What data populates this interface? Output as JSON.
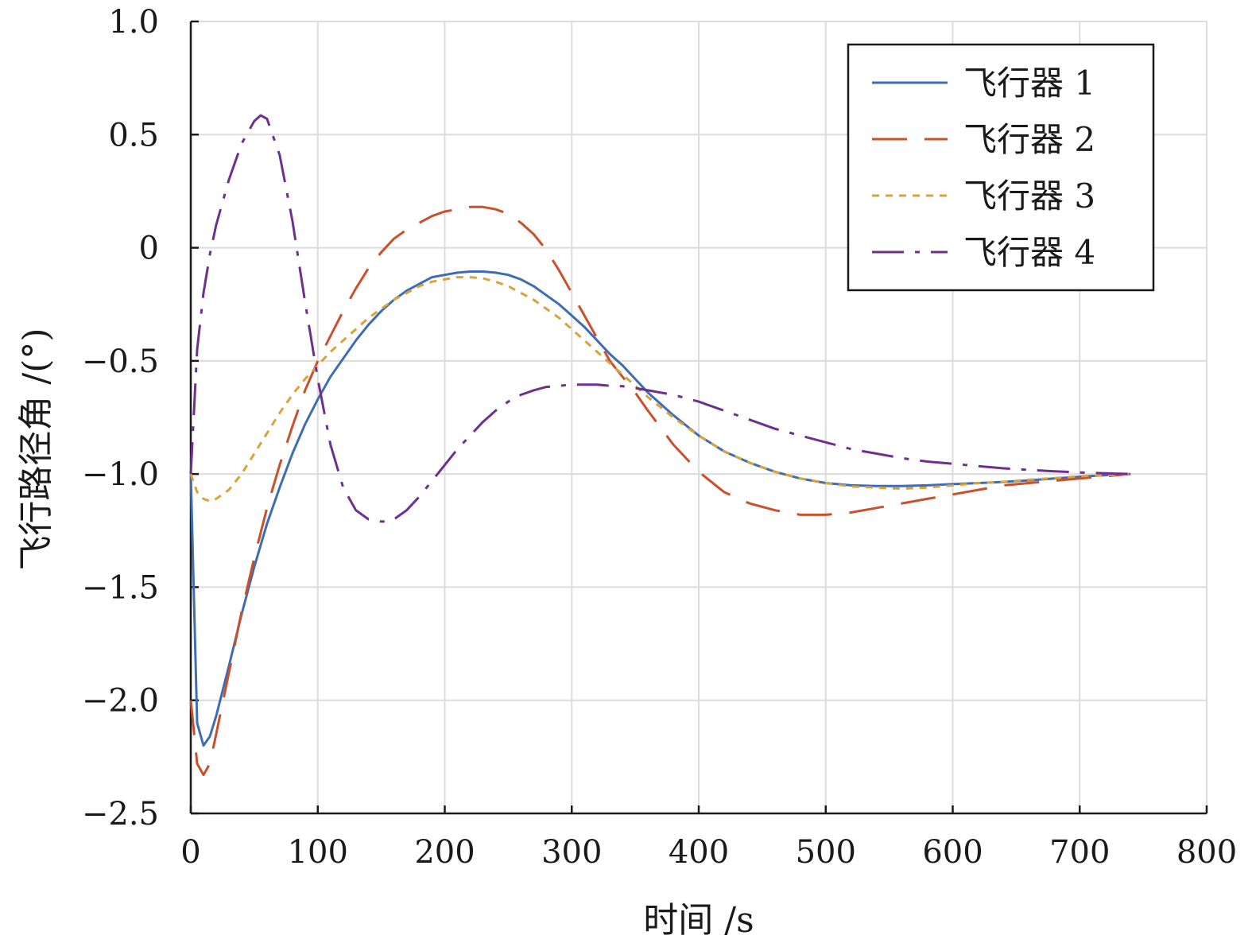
{
  "chart_data": {
    "type": "line",
    "title": "",
    "xlabel": "时间 /s",
    "ylabel": "飞行路径角 /(°)",
    "xlim": [
      0,
      800
    ],
    "ylim": [
      -2.5,
      1.0
    ],
    "xticks": [
      0,
      100,
      200,
      300,
      400,
      500,
      600,
      700,
      800
    ],
    "xtick_labels": [
      "0",
      "100",
      "200",
      "300",
      "400",
      "500",
      "600",
      "700",
      "800"
    ],
    "yticks": [
      1.0,
      0.5,
      0,
      -0.5,
      -1.0,
      -1.5,
      -2.0,
      -2.5
    ],
    "ytick_labels": [
      "1.0",
      "0.5",
      "0",
      "−0.5",
      "−1.0",
      "−1.5",
      "−2.0",
      "−2.5"
    ],
    "grid": true,
    "legend_position": "top-right",
    "series": [
      {
        "name": "飞行器 1",
        "color": "#3e6db5",
        "dash": "solid",
        "x": [
          0,
          5,
          10,
          15,
          20,
          30,
          40,
          50,
          60,
          70,
          80,
          90,
          100,
          110,
          120,
          130,
          140,
          150,
          160,
          170,
          180,
          190,
          200,
          210,
          220,
          230,
          240,
          250,
          260,
          270,
          280,
          290,
          300,
          310,
          320,
          330,
          340,
          350,
          360,
          380,
          400,
          420,
          440,
          460,
          480,
          500,
          520,
          540,
          560,
          580,
          600,
          620,
          640,
          660,
          680,
          700,
          720,
          740
        ],
        "y": [
          -1.0,
          -2.1,
          -2.2,
          -2.16,
          -2.07,
          -1.85,
          -1.62,
          -1.41,
          -1.22,
          -1.06,
          -0.91,
          -0.78,
          -0.67,
          -0.57,
          -0.49,
          -0.41,
          -0.34,
          -0.28,
          -0.23,
          -0.19,
          -0.16,
          -0.13,
          -0.12,
          -0.11,
          -0.105,
          -0.105,
          -0.11,
          -0.12,
          -0.14,
          -0.17,
          -0.21,
          -0.25,
          -0.3,
          -0.35,
          -0.41,
          -0.47,
          -0.52,
          -0.58,
          -0.64,
          -0.74,
          -0.83,
          -0.9,
          -0.95,
          -0.99,
          -1.02,
          -1.04,
          -1.05,
          -1.053,
          -1.053,
          -1.05,
          -1.045,
          -1.04,
          -1.035,
          -1.028,
          -1.02,
          -1.012,
          -1.005,
          -1.0
        ]
      },
      {
        "name": "飞行器 2",
        "color": "#c9502b",
        "dash": "long-dash",
        "x": [
          0,
          5,
          10,
          15,
          20,
          30,
          40,
          50,
          60,
          70,
          80,
          90,
          100,
          110,
          120,
          130,
          140,
          150,
          160,
          170,
          180,
          190,
          200,
          210,
          220,
          230,
          240,
          250,
          260,
          270,
          280,
          290,
          300,
          310,
          320,
          330,
          340,
          350,
          360,
          380,
          400,
          420,
          440,
          460,
          480,
          500,
          520,
          540,
          560,
          580,
          600,
          620,
          640,
          660,
          680,
          700,
          720,
          740
        ],
        "y": [
          -2.0,
          -2.28,
          -2.33,
          -2.28,
          -2.15,
          -1.88,
          -1.61,
          -1.37,
          -1.15,
          -0.96,
          -0.79,
          -0.63,
          -0.5,
          -0.39,
          -0.28,
          -0.18,
          -0.09,
          -0.02,
          0.04,
          0.08,
          0.11,
          0.14,
          0.16,
          0.17,
          0.18,
          0.18,
          0.17,
          0.15,
          0.11,
          0.06,
          -0.01,
          -0.1,
          -0.2,
          -0.3,
          -0.4,
          -0.5,
          -0.57,
          -0.64,
          -0.72,
          -0.87,
          -0.99,
          -1.08,
          -1.13,
          -1.16,
          -1.18,
          -1.18,
          -1.17,
          -1.15,
          -1.13,
          -1.11,
          -1.09,
          -1.07,
          -1.05,
          -1.04,
          -1.03,
          -1.02,
          -1.01,
          -1.0
        ]
      },
      {
        "name": "飞行器 3",
        "color": "#d9a23b",
        "dash": "dotted",
        "x": [
          0,
          5,
          10,
          15,
          20,
          30,
          40,
          50,
          60,
          70,
          80,
          90,
          100,
          110,
          120,
          130,
          140,
          150,
          160,
          170,
          180,
          190,
          200,
          210,
          220,
          230,
          240,
          250,
          260,
          270,
          280,
          290,
          300,
          310,
          320,
          330,
          340,
          350,
          360,
          380,
          400,
          420,
          440,
          460,
          480,
          500,
          520,
          540,
          560,
          580,
          600,
          620,
          640,
          660,
          680,
          700,
          720,
          740
        ],
        "y": [
          -1.0,
          -1.08,
          -1.11,
          -1.12,
          -1.11,
          -1.07,
          -1.0,
          -0.91,
          -0.82,
          -0.73,
          -0.65,
          -0.58,
          -0.52,
          -0.46,
          -0.41,
          -0.36,
          -0.31,
          -0.27,
          -0.23,
          -0.2,
          -0.17,
          -0.15,
          -0.14,
          -0.13,
          -0.13,
          -0.135,
          -0.15,
          -0.17,
          -0.2,
          -0.23,
          -0.27,
          -0.31,
          -0.36,
          -0.41,
          -0.46,
          -0.51,
          -0.56,
          -0.61,
          -0.66,
          -0.75,
          -0.83,
          -0.9,
          -0.95,
          -0.99,
          -1.02,
          -1.04,
          -1.055,
          -1.06,
          -1.065,
          -1.06,
          -1.05,
          -1.04,
          -1.035,
          -1.025,
          -1.018,
          -1.01,
          -1.005,
          -1.0
        ]
      },
      {
        "name": "飞行器 4",
        "color": "#6e2f8f",
        "dash": "dash-dot",
        "x": [
          0,
          5,
          10,
          15,
          20,
          30,
          40,
          50,
          55,
          60,
          70,
          80,
          90,
          100,
          110,
          120,
          130,
          140,
          150,
          155,
          160,
          170,
          180,
          190,
          200,
          210,
          220,
          230,
          240,
          250,
          260,
          270,
          280,
          290,
          300,
          310,
          320,
          330,
          340,
          350,
          360,
          380,
          400,
          420,
          440,
          460,
          480,
          500,
          520,
          540,
          560,
          580,
          600,
          620,
          640,
          660,
          680,
          700,
          720,
          740
        ],
        "y": [
          -1.0,
          -0.45,
          -0.2,
          -0.03,
          0.1,
          0.3,
          0.46,
          0.56,
          0.585,
          0.57,
          0.41,
          0.12,
          -0.24,
          -0.58,
          -0.87,
          -1.06,
          -1.16,
          -1.2,
          -1.21,
          -1.21,
          -1.2,
          -1.16,
          -1.1,
          -1.03,
          -0.96,
          -0.89,
          -0.83,
          -0.77,
          -0.72,
          -0.68,
          -0.65,
          -0.63,
          -0.615,
          -0.61,
          -0.605,
          -0.605,
          -0.605,
          -0.61,
          -0.612,
          -0.62,
          -0.63,
          -0.65,
          -0.68,
          -0.72,
          -0.76,
          -0.8,
          -0.83,
          -0.86,
          -0.89,
          -0.91,
          -0.93,
          -0.945,
          -0.955,
          -0.965,
          -0.975,
          -0.982,
          -0.988,
          -0.993,
          -0.997,
          -1.0
        ]
      }
    ]
  }
}
